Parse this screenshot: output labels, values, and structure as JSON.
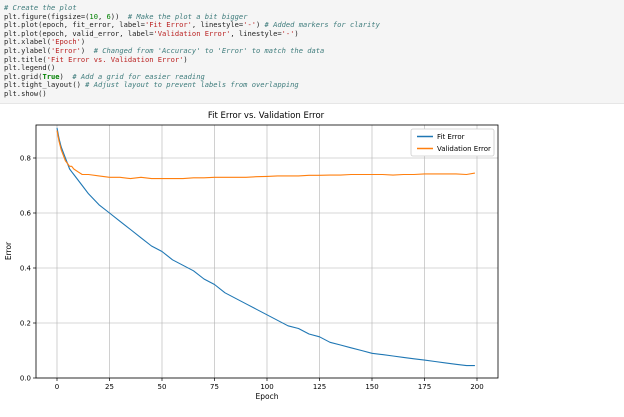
{
  "code_cell": {
    "lines": [
      [
        {
          "t": "# Create the plot",
          "k": "comment"
        }
      ],
      [
        {
          "t": "plt.figure(figsize=(",
          "k": "plain"
        },
        {
          "t": "10",
          "k": "number"
        },
        {
          "t": ", ",
          "k": "plain"
        },
        {
          "t": "6",
          "k": "number"
        },
        {
          "t": "))  ",
          "k": "plain"
        },
        {
          "t": "# Make the plot a bit bigger",
          "k": "comment"
        }
      ],
      [
        {
          "t": "plt.plot(epoch, fit_error, label=",
          "k": "plain"
        },
        {
          "t": "'Fit Error'",
          "k": "string"
        },
        {
          "t": ", linestyle=",
          "k": "plain"
        },
        {
          "t": "'-'",
          "k": "string"
        },
        {
          "t": ") ",
          "k": "plain"
        },
        {
          "t": "# Added markers for clarity",
          "k": "comment"
        }
      ],
      [
        {
          "t": "plt.plot(epoch, valid_error, label=",
          "k": "plain"
        },
        {
          "t": "'Validation Error'",
          "k": "string"
        },
        {
          "t": ", linestyle=",
          "k": "plain"
        },
        {
          "t": "'-'",
          "k": "string"
        },
        {
          "t": ")",
          "k": "plain"
        }
      ],
      [
        {
          "t": "plt.xlabel(",
          "k": "plain"
        },
        {
          "t": "'Epoch'",
          "k": "string"
        },
        {
          "t": ")",
          "k": "plain"
        }
      ],
      [
        {
          "t": "plt.ylabel(",
          "k": "plain"
        },
        {
          "t": "'Error'",
          "k": "string"
        },
        {
          "t": ")  ",
          "k": "plain"
        },
        {
          "t": "# Changed from 'Accuracy' to 'Error' to match the data",
          "k": "comment"
        }
      ],
      [
        {
          "t": "plt.title(",
          "k": "plain"
        },
        {
          "t": "'Fit Error vs. Validation Error'",
          "k": "string"
        },
        {
          "t": ")",
          "k": "plain"
        }
      ],
      [
        {
          "t": "plt.legend()",
          "k": "plain"
        }
      ],
      [
        {
          "t": "plt.grid(",
          "k": "plain"
        },
        {
          "t": "True",
          "k": "keyword"
        },
        {
          "t": ")  ",
          "k": "plain"
        },
        {
          "t": "# Add a grid for easier reading",
          "k": "comment"
        }
      ],
      [
        {
          "t": "plt.tight_layout() ",
          "k": "plain"
        },
        {
          "t": "# Adjust layout to prevent labels from overlapping",
          "k": "comment"
        }
      ],
      [
        {
          "t": "plt.show()",
          "k": "plain"
        }
      ]
    ]
  },
  "chart_data": {
    "type": "line",
    "title": "Fit Error vs. Validation Error",
    "xlabel": "Epoch",
    "ylabel": "Error",
    "xlim": [
      -10,
      210
    ],
    "ylim": [
      0.0,
      0.92
    ],
    "xticks": [
      0,
      25,
      50,
      75,
      100,
      125,
      150,
      175,
      200
    ],
    "yticks": [
      0.0,
      0.2,
      0.4,
      0.6,
      0.8
    ],
    "ytick_labels": [
      "0.0",
      "0.2",
      "0.4",
      "0.6",
      "0.8"
    ],
    "grid": true,
    "legend_position": "upper right",
    "x": [
      0,
      1,
      2,
      3,
      4,
      5,
      6,
      7,
      8,
      10,
      12,
      15,
      20,
      25,
      30,
      35,
      40,
      45,
      50,
      55,
      60,
      65,
      70,
      75,
      80,
      85,
      90,
      95,
      100,
      105,
      110,
      115,
      120,
      125,
      130,
      135,
      140,
      145,
      150,
      155,
      160,
      165,
      170,
      175,
      180,
      185,
      190,
      195,
      199
    ],
    "series": [
      {
        "name": "Fit Error",
        "color": "#1f77b4",
        "values": [
          0.91,
          0.87,
          0.84,
          0.82,
          0.8,
          0.78,
          0.76,
          0.75,
          0.74,
          0.72,
          0.7,
          0.67,
          0.63,
          0.6,
          0.57,
          0.54,
          0.51,
          0.48,
          0.46,
          0.43,
          0.41,
          0.39,
          0.36,
          0.34,
          0.31,
          0.29,
          0.27,
          0.25,
          0.23,
          0.21,
          0.19,
          0.18,
          0.16,
          0.15,
          0.13,
          0.12,
          0.11,
          0.1,
          0.09,
          0.085,
          0.08,
          0.075,
          0.07,
          0.065,
          0.06,
          0.055,
          0.05,
          0.045,
          0.045
        ]
      },
      {
        "name": "Validation Error",
        "color": "#ff7f0e",
        "values": [
          0.9,
          0.86,
          0.83,
          0.81,
          0.79,
          0.78,
          0.77,
          0.77,
          0.76,
          0.75,
          0.74,
          0.74,
          0.735,
          0.73,
          0.73,
          0.725,
          0.73,
          0.725,
          0.725,
          0.725,
          0.725,
          0.728,
          0.728,
          0.73,
          0.73,
          0.73,
          0.73,
          0.732,
          0.733,
          0.735,
          0.735,
          0.735,
          0.737,
          0.737,
          0.738,
          0.738,
          0.74,
          0.74,
          0.74,
          0.74,
          0.738,
          0.74,
          0.74,
          0.742,
          0.742,
          0.742,
          0.742,
          0.74,
          0.745
        ]
      }
    ]
  }
}
